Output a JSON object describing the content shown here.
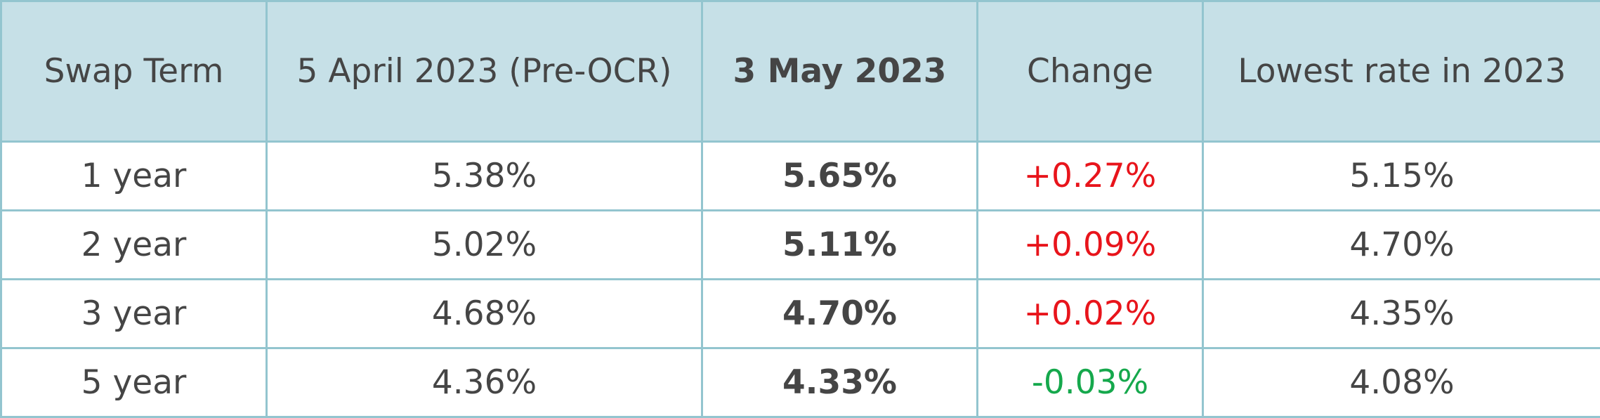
{
  "table": {
    "header": [
      "Swap Term",
      "5 April 2023 (Pre-OCR)",
      "3 May 2023",
      "Change",
      "Lowest rate in 2023"
    ],
    "rows": [
      [
        "1 year",
        "5.38%",
        "5.65%",
        "+0.27%",
        "5.15%"
      ],
      [
        "2 year",
        "5.02%",
        "5.11%",
        "+0.09%",
        "4.70%"
      ],
      [
        "3 year",
        "4.68%",
        "4.70%",
        "+0.02%",
        "4.35%"
      ],
      [
        "5 year",
        "4.36%",
        "4.33%",
        "-0.03%",
        "4.08%"
      ]
    ]
  }
}
